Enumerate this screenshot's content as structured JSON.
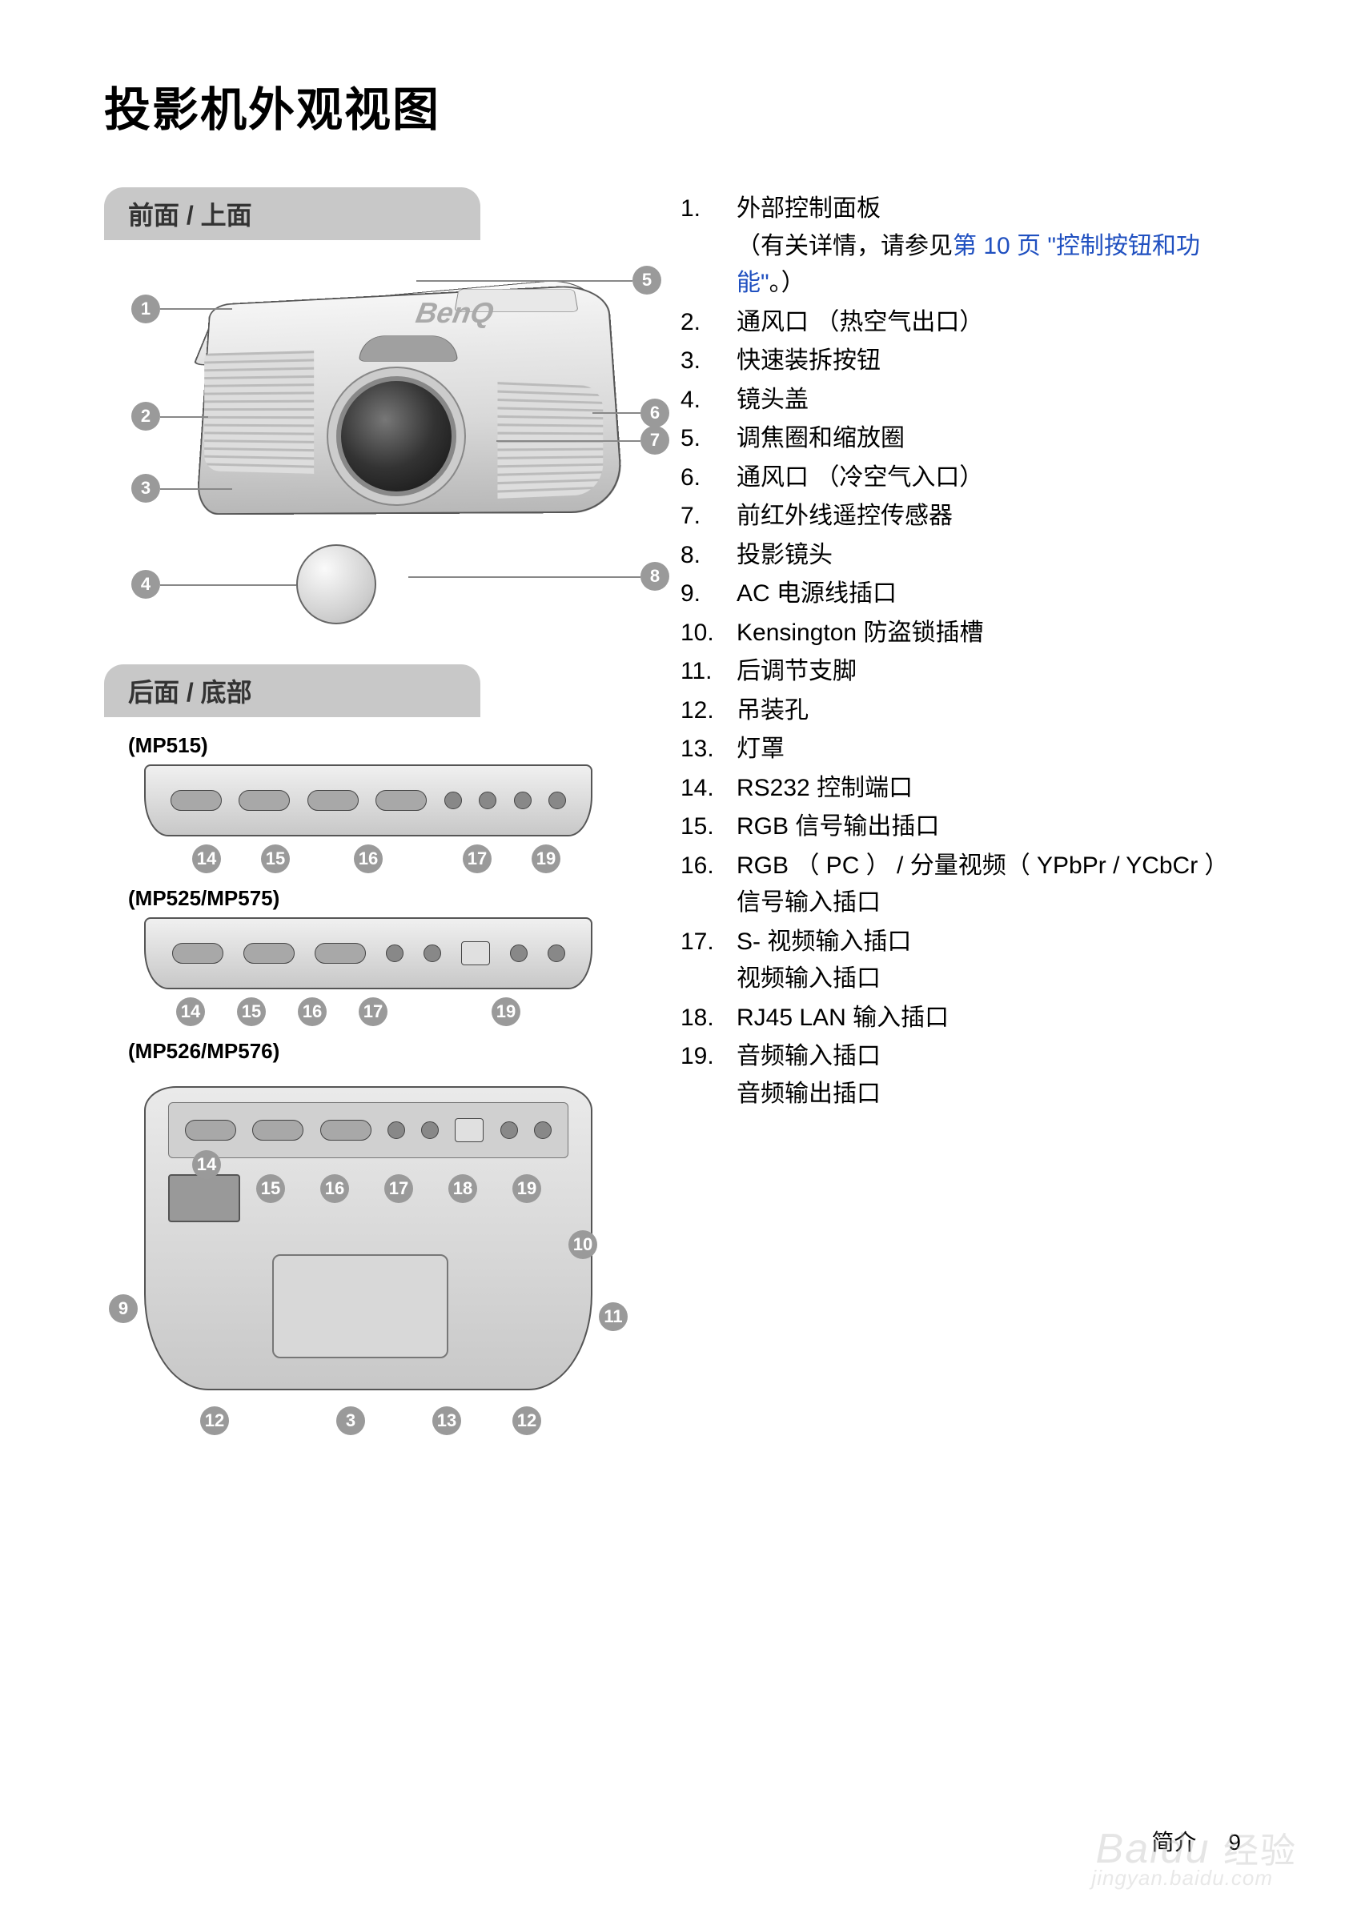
{
  "title": "投影机外观视图",
  "sections": {
    "front": "前面 / 上面",
    "rear": "后面 / 底部"
  },
  "models": {
    "m1": "(MP515)",
    "m2": "(MP525/MP575)",
    "m3": "(MP526/MP576)"
  },
  "brand": "BenQ",
  "frontCallouts": [
    "1",
    "2",
    "3",
    "4",
    "5",
    "6",
    "7",
    "8"
  ],
  "rearCallouts1": [
    "14",
    "15",
    "16",
    "17",
    "19"
  ],
  "rearCallouts2": [
    "14",
    "15",
    "16",
    "17",
    "19"
  ],
  "bottomCallouts": [
    "14",
    "15",
    "16",
    "17",
    "18",
    "19",
    "9",
    "10",
    "11",
    "12",
    "3",
    "13",
    "12"
  ],
  "features": [
    {
      "n": "1.",
      "t": "外部控制面板",
      "sub": "（有关详情，请参见",
      "link": "第 10 页 \"控制按钮和功能\"",
      "tail": "。）"
    },
    {
      "n": "2.",
      "t": "通风口 （热空气出口）"
    },
    {
      "n": "3.",
      "t": "快速装拆按钮"
    },
    {
      "n": "4.",
      "t": "镜头盖"
    },
    {
      "n": "5.",
      "t": "调焦圈和缩放圈"
    },
    {
      "n": "6.",
      "t": "通风口 （冷空气入口）"
    },
    {
      "n": "7.",
      "t": "前红外线遥控传感器"
    },
    {
      "n": "8.",
      "t": "投影镜头"
    },
    {
      "n": "9.",
      "t": "AC 电源线插口"
    },
    {
      "n": "10.",
      "t": "Kensington 防盗锁插槽"
    },
    {
      "n": "11.",
      "t": "后调节支脚"
    },
    {
      "n": "12.",
      "t": "吊装孔"
    },
    {
      "n": "13.",
      "t": "灯罩"
    },
    {
      "n": "14.",
      "t": "RS232 控制端口"
    },
    {
      "n": "15.",
      "t": "RGB 信号输出插口"
    },
    {
      "n": "16.",
      "t": "RGB （ PC ） / 分量视频（ YPbPr / YCbCr ）信号输入插口"
    },
    {
      "n": "17.",
      "t": "S- 视频输入插口",
      "sub2": "视频输入插口"
    },
    {
      "n": "18.",
      "t": "RJ45 LAN 输入插口"
    },
    {
      "n": "19.",
      "t": "音频输入插口",
      "sub2": "音频输出插口"
    }
  ],
  "footer": {
    "section": "简介",
    "page": "9"
  },
  "watermark": {
    "brand": "Baidu",
    "cn": "经验",
    "sub": "jingyan.baidu.com"
  },
  "colors": {
    "header_bg": "#c8c8c8",
    "callout_bg": "#9a9a9a",
    "link": "#2050c0",
    "text": "#000000"
  }
}
